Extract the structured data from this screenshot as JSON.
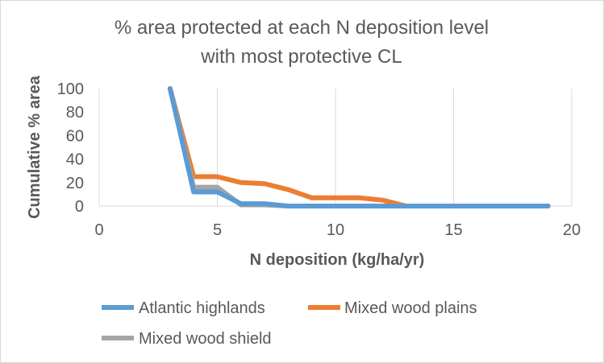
{
  "chart_data": {
    "type": "line",
    "title_line1": "% area protected at each N deposition level",
    "title_line2": "with most protective CL",
    "xlabel": "N deposition (kg/ha/yr)",
    "ylabel": "Cumulative % area",
    "xlim": [
      0,
      20
    ],
    "ylim": [
      0,
      100
    ],
    "xticks": [
      0,
      5,
      10,
      15,
      20
    ],
    "yticks": [
      0,
      20,
      40,
      60,
      80,
      100
    ],
    "grid": "vertical",
    "legend_position": "bottom",
    "series": [
      {
        "name": "Atlantic highlands",
        "color": "#5b9bd5",
        "x": [
          3,
          4,
          5,
          6,
          7,
          8,
          9,
          10,
          11,
          12,
          13,
          14,
          15,
          16,
          17,
          18,
          19
        ],
        "y": [
          100,
          12,
          12,
          2,
          2,
          0,
          0,
          0,
          0,
          0,
          0,
          0,
          0,
          0,
          0,
          0,
          0
        ]
      },
      {
        "name": "Mixed wood plains",
        "color": "#ed7d31",
        "x": [
          3,
          4,
          5,
          6,
          7,
          8,
          9,
          10,
          11,
          12,
          13,
          14,
          15,
          16,
          17,
          18,
          19
        ],
        "y": [
          100,
          25,
          25,
          20,
          19,
          14,
          7,
          7,
          7,
          5,
          0,
          0,
          0,
          0,
          0,
          0,
          0
        ]
      },
      {
        "name": "Mixed wood shield",
        "color": "#a5a5a5",
        "x": [
          3,
          4,
          5,
          6,
          7,
          8,
          9,
          10,
          11,
          12,
          13,
          14,
          15,
          16,
          17,
          18,
          19
        ],
        "y": [
          100,
          16,
          16,
          1,
          1,
          0,
          0,
          0,
          0,
          0,
          0,
          0,
          0,
          0,
          0,
          0,
          0
        ]
      }
    ]
  }
}
